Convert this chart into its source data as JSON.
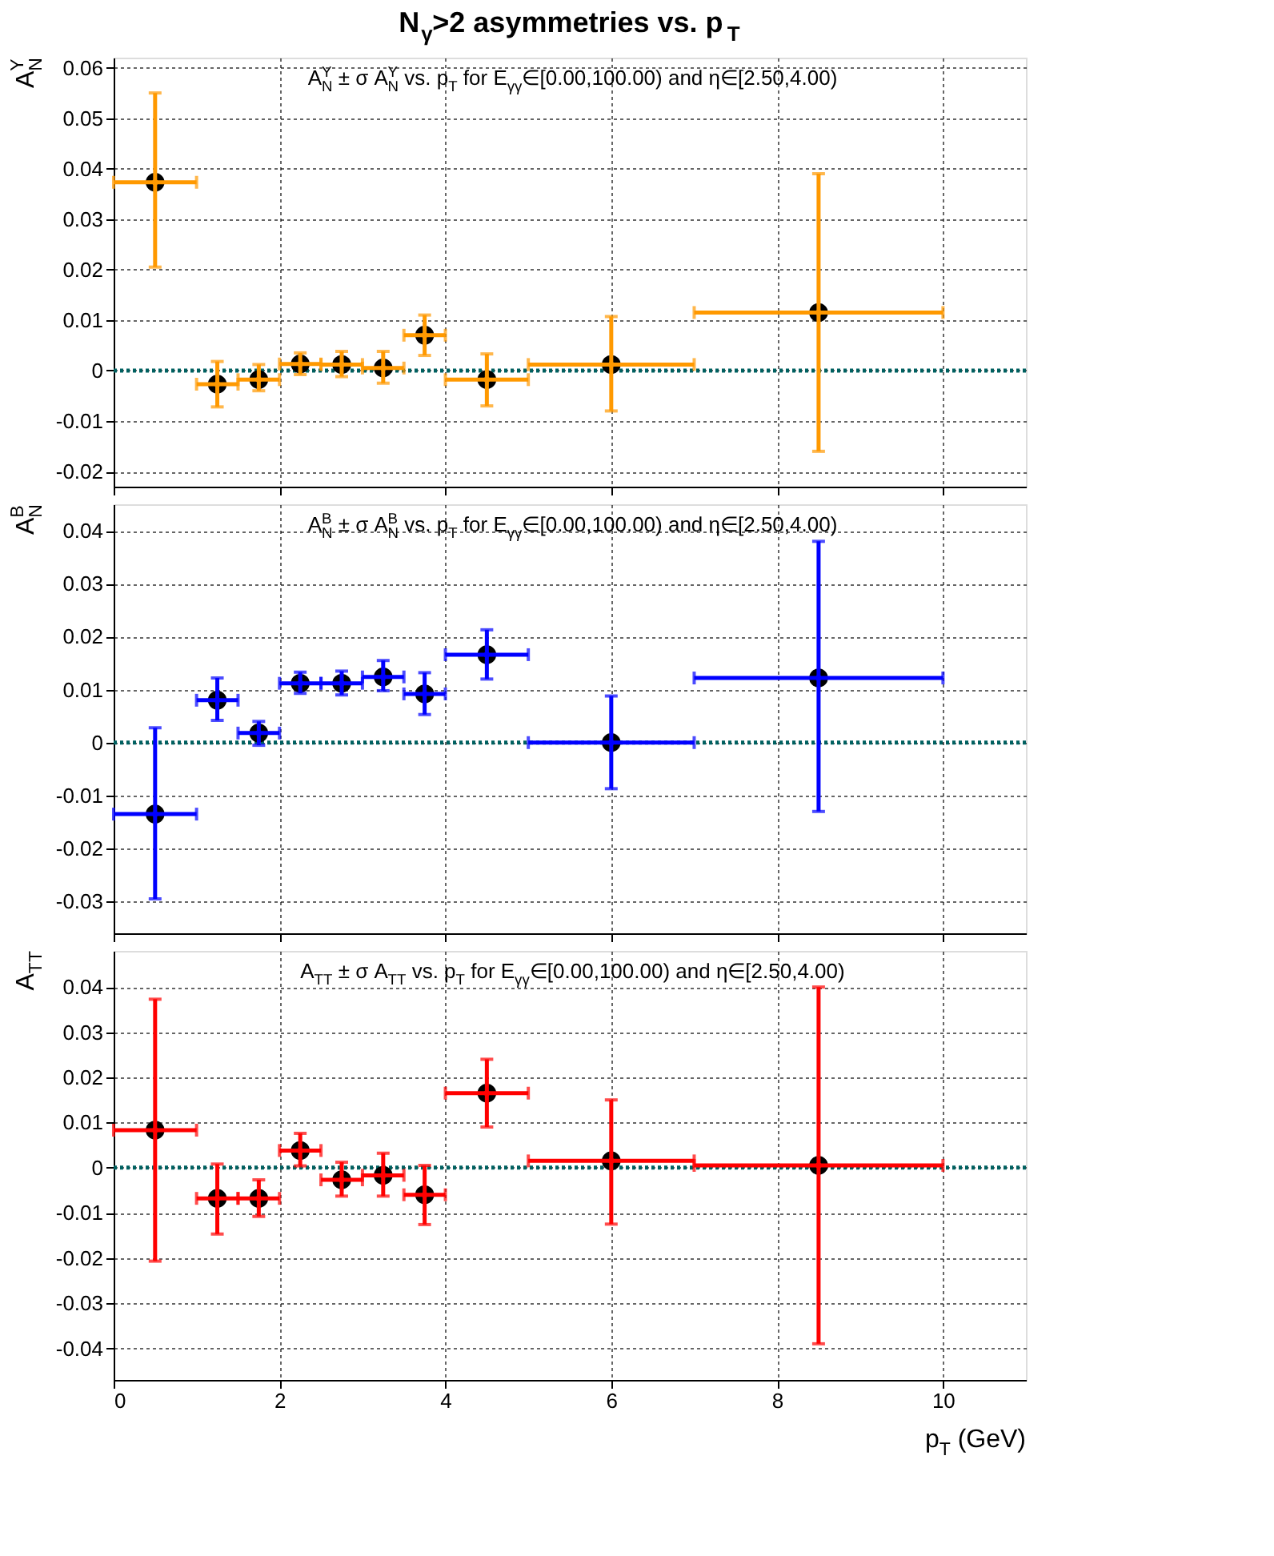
{
  "chart_data": [
    {
      "type": "scatter",
      "title": "N$_{γ}$>2 asymmetries vs. p$_{T}$",
      "ylabel": "A$_{N}$$^{Y}$",
      "annotations": [
        "A$_{N}$$^{Y}$ ± σ A$_{N}$$^{Y}$ vs. p$_{T}$ for E$_{γγ}$∈[0.00,100.00) and η∈[2.50,4.00)"
      ],
      "x": [
        0.5,
        1.25,
        1.75,
        2.25,
        2.75,
        3.25,
        3.75,
        4.5,
        6,
        8.5
      ],
      "xlim": [
        0,
        11
      ],
      "xticks": [
        0,
        2,
        4,
        6,
        8,
        10
      ],
      "ylim": [
        -0.023,
        0.062
      ],
      "yticks": [
        -0.02,
        -0.01,
        0,
        0.01,
        0.02,
        0.03,
        0.04,
        0.05,
        0.06
      ],
      "grid": true,
      "marker": "circle",
      "tick_labels": "y",
      "ref_lines": [
        {
          "axis": "y",
          "value": 0,
          "color": "#006060",
          "line_style": "dotted"
        }
      ],
      "series": [
        {
          "color": "#ff9900",
          "values": [
            0.0373,
            -0.0027,
            -0.0018,
            0.0013,
            0.0012,
            0.0005,
            0.007,
            -0.0018,
            0.0012,
            0.0115
          ],
          "errors": [
            [
              0.0205,
              0.055
            ],
            [
              -0.0072,
              0.0018
            ],
            [
              -0.004,
              0.0012
            ],
            [
              -0.0008,
              0.0035
            ],
            [
              -0.0012,
              0.0038
            ],
            [
              -0.0025,
              0.0038
            ],
            [
              0.003,
              0.011
            ],
            [
              -0.007,
              0.0033
            ],
            [
              -0.008,
              0.0107
            ],
            [
              -0.016,
              0.039
            ]
          ],
          "xerrors": [
            0.5,
            0.25,
            0.25,
            0.25,
            0.25,
            0.25,
            0.25,
            0.5,
            1,
            1.5
          ]
        }
      ]
    },
    {
      "type": "scatter",
      "ylabel": "A$_{N}$$^{B}$",
      "annotations": [
        "A$_{N}$$^{B}$ ± σ A$_{N}$$^{B}$ vs. p$_{T}$ for E$_{γγ}$∈[0.00,100.00) and η∈[2.50,4.00)"
      ],
      "x": [
        0.5,
        1.25,
        1.75,
        2.25,
        2.75,
        3.25,
        3.75,
        4.5,
        6,
        8.5
      ],
      "xlim": [
        0,
        11
      ],
      "xticks": [
        0,
        2,
        4,
        6,
        8,
        10
      ],
      "ylim": [
        -0.036,
        0.045
      ],
      "yticks": [
        -0.03,
        -0.02,
        -0.01,
        0,
        0.01,
        0.02,
        0.03,
        0.04
      ],
      "grid": true,
      "marker": "circle",
      "tick_labels": "y",
      "ref_lines": [
        {
          "axis": "y",
          "value": 0,
          "color": "#006060",
          "line_style": "dotted"
        }
      ],
      "series": [
        {
          "color": "#0000ff",
          "values": [
            -0.0135,
            0.008,
            0.0018,
            0.0112,
            0.0112,
            0.0124,
            0.0092,
            0.0166,
            0.0,
            0.0122
          ],
          "errors": [
            [
              -0.0295,
              0.0028
            ],
            [
              0.0042,
              0.0122
            ],
            [
              -0.0005,
              0.004
            ],
            [
              0.0093,
              0.0133
            ],
            [
              0.009,
              0.0135
            ],
            [
              0.0098,
              0.0155
            ],
            [
              0.0053,
              0.0132
            ],
            [
              0.012,
              0.0213
            ],
            [
              -0.0087,
              0.0088
            ],
            [
              -0.013,
              0.038
            ]
          ],
          "xerrors": [
            0.5,
            0.25,
            0.25,
            0.25,
            0.25,
            0.25,
            0.25,
            0.5,
            1,
            1.5
          ]
        }
      ]
    },
    {
      "type": "scatter",
      "ylabel": "A$_{TT}$",
      "xlabel": "p$_{T}$ (GeV)",
      "annotations": [
        "A$_{TT}$ ± σ A$_{TT}$ vs. p$_{T}$ for E$_{γγ}$∈[0.00,100.00) and η∈[2.50,4.00)"
      ],
      "x": [
        0.5,
        1.25,
        1.75,
        2.25,
        2.75,
        3.25,
        3.75,
        4.5,
        6,
        8.5
      ],
      "xlim": [
        0,
        11
      ],
      "xticks": [
        0,
        2,
        4,
        6,
        8,
        10
      ],
      "ylim": [
        -0.047,
        0.048
      ],
      "yticks": [
        -0.04,
        -0.03,
        -0.02,
        -0.01,
        0,
        0.01,
        0.02,
        0.03,
        0.04
      ],
      "grid": true,
      "marker": "circle",
      "ref_lines": [
        {
          "axis": "y",
          "value": 0,
          "color": "#006060",
          "line_style": "dotted"
        }
      ],
      "series": [
        {
          "color": "#ff0000",
          "values": [
            0.0083,
            -0.0068,
            -0.0068,
            0.0038,
            -0.0027,
            -0.0017,
            -0.006,
            0.0165,
            0.0015,
            0.0005
          ],
          "errors": [
            [
              -0.0207,
              0.0373
            ],
            [
              -0.0147,
              0.0008
            ],
            [
              -0.0108,
              -0.0027
            ],
            [
              0.0004,
              0.0076
            ],
            [
              -0.0063,
              0.0012
            ],
            [
              -0.0063,
              0.0032
            ],
            [
              -0.0126,
              0.0005
            ],
            [
              0.009,
              0.024
            ],
            [
              -0.0125,
              0.015
            ],
            [
              -0.039,
              0.04
            ]
          ],
          "xerrors": [
            0.5,
            0.25,
            0.25,
            0.25,
            0.25,
            0.25,
            0.25,
            0.5,
            1,
            1.5
          ]
        }
      ]
    }
  ]
}
